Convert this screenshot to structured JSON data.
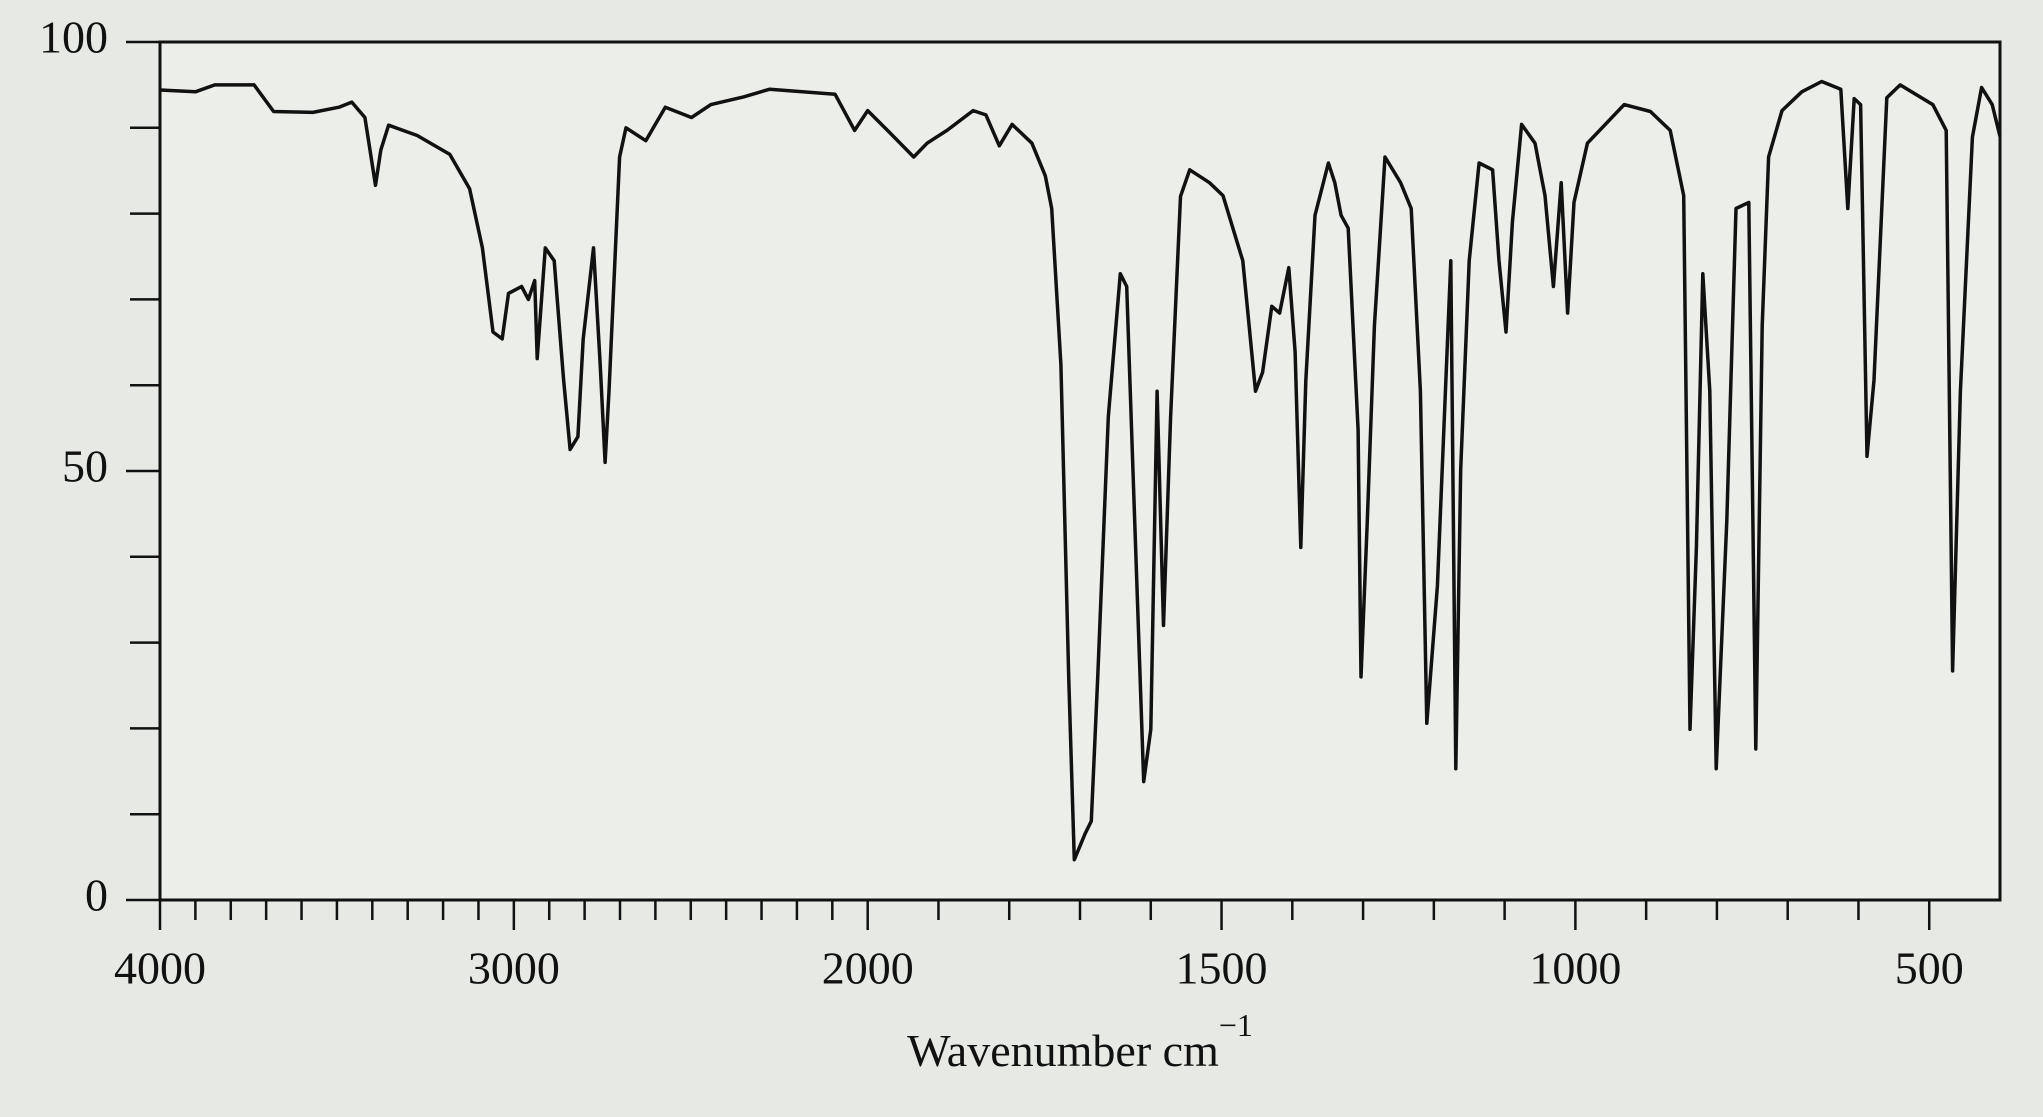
{
  "chart_data": {
    "type": "line",
    "x_label": "Wavenumber cm",
    "x_label_superscript": "−1",
    "color": "#111111",
    "xlim": [
      4000,
      400
    ],
    "x_scale_change": {
      "at": 2000,
      "factor": 2
    },
    "xticks": [
      4000,
      3000,
      2000,
      1500,
      1000,
      500
    ],
    "xticks_minor": [
      3900,
      3800,
      3700,
      3600,
      3500,
      3400,
      3300,
      3200,
      3100,
      2900,
      2800,
      2700,
      2600,
      2500,
      2400,
      2300,
      2200,
      2100,
      1900,
      1800,
      1700,
      1600,
      1400,
      1300,
      1200,
      1100,
      900,
      800,
      700,
      600
    ],
    "ylim": [
      0,
      100
    ],
    "yticks": [
      0,
      50,
      100
    ],
    "yticks_minor": [
      10,
      20,
      30,
      40,
      60,
      70,
      80,
      90
    ],
    "x": [
      4000,
      3900,
      3845,
      3734,
      3679,
      3568,
      3494,
      3458,
      3421,
      3391,
      3376,
      3354,
      3273,
      3181,
      3125,
      3089,
      3059,
      3033,
      3015,
      2978,
      2959,
      2941,
      2934,
      2911,
      2886,
      2860,
      2841,
      2819,
      2804,
      2775,
      2756,
      2742,
      2731,
      2701,
      2683,
      2627,
      2572,
      2498,
      2443,
      2351,
      2277,
      2092,
      2037,
      2000,
      1972,
      1935,
      1916,
      1888,
      1851,
      1833,
      1814,
      1796,
      1768,
      1749,
      1740,
      1727,
      1716,
      1708,
      1693,
      1684,
      1675,
      1660,
      1643,
      1634,
      1624,
      1610,
      1600,
      1591,
      1582,
      1572,
      1558,
      1545,
      1517,
      1498,
      1470,
      1452,
      1442,
      1429,
      1418,
      1405,
      1396,
      1388,
      1381,
      1368,
      1349,
      1340,
      1331,
      1321,
      1307,
      1303,
      1294,
      1284,
      1269,
      1247,
      1232,
      1219,
      1210,
      1195,
      1176,
      1169,
      1162,
      1150,
      1136,
      1117,
      1108,
      1098,
      1089,
      1076,
      1057,
      1043,
      1031,
      1020,
      1011,
      1002,
      983,
      931,
      894,
      866,
      847,
      838,
      829,
      820,
      810,
      801,
      786,
      773,
      755,
      745,
      736,
      727,
      708,
      680,
      652,
      625,
      615,
      606,
      597,
      588,
      578,
      560,
      541,
      495,
      476,
      467,
      456,
      439,
      426,
      411,
      400
    ],
    "values": [
      94.4,
      94.2,
      95.0,
      95.0,
      91.9,
      91.8,
      92.4,
      93.0,
      91.2,
      83.3,
      87.4,
      90.3,
      89.1,
      86.9,
      82.9,
      76.0,
      66.2,
      65.4,
      70.7,
      71.5,
      70.0,
      72.2,
      63.1,
      76.0,
      74.5,
      60.9,
      52.5,
      54.0,
      65.4,
      76.0,
      62.4,
      51.0,
      59.3,
      86.6,
      90.0,
      88.5,
      92.4,
      91.2,
      92.7,
      93.6,
      94.5,
      93.9,
      89.7,
      92.0,
      89.7,
      86.6,
      88.2,
      89.7,
      92.0,
      91.5,
      87.9,
      90.4,
      88.2,
      84.4,
      80.6,
      62.4,
      26.0,
      4.7,
      7.7,
      9.2,
      25.9,
      56.3,
      73.0,
      71.5,
      47.2,
      13.8,
      19.9,
      59.3,
      32.0,
      56.3,
      82.0,
      85.1,
      83.6,
      82.1,
      74.5,
      59.3,
      61.5,
      69.2,
      68.4,
      73.7,
      63.9,
      41.1,
      60.5,
      79.8,
      85.9,
      83.6,
      79.8,
      78.3,
      54.8,
      26.0,
      44.2,
      66.9,
      86.6,
      83.6,
      80.6,
      59.3,
      20.6,
      36.6,
      74.5,
      15.3,
      50.2,
      74.5,
      85.9,
      85.1,
      74.5,
      66.2,
      79.0,
      90.4,
      88.2,
      82.1,
      71.5,
      83.6,
      68.4,
      81.3,
      88.2,
      92.7,
      91.9,
      89.7,
      82.1,
      19.9,
      41.1,
      73.0,
      59.3,
      15.3,
      44.2,
      80.6,
      81.3,
      17.6,
      66.9,
      86.6,
      92.0,
      94.2,
      95.4,
      94.5,
      80.6,
      93.4,
      92.7,
      51.7,
      60.6,
      93.5,
      95.0,
      92.7,
      89.7,
      26.7,
      59.3,
      88.9,
      94.7,
      92.7,
      89.0
    ]
  }
}
